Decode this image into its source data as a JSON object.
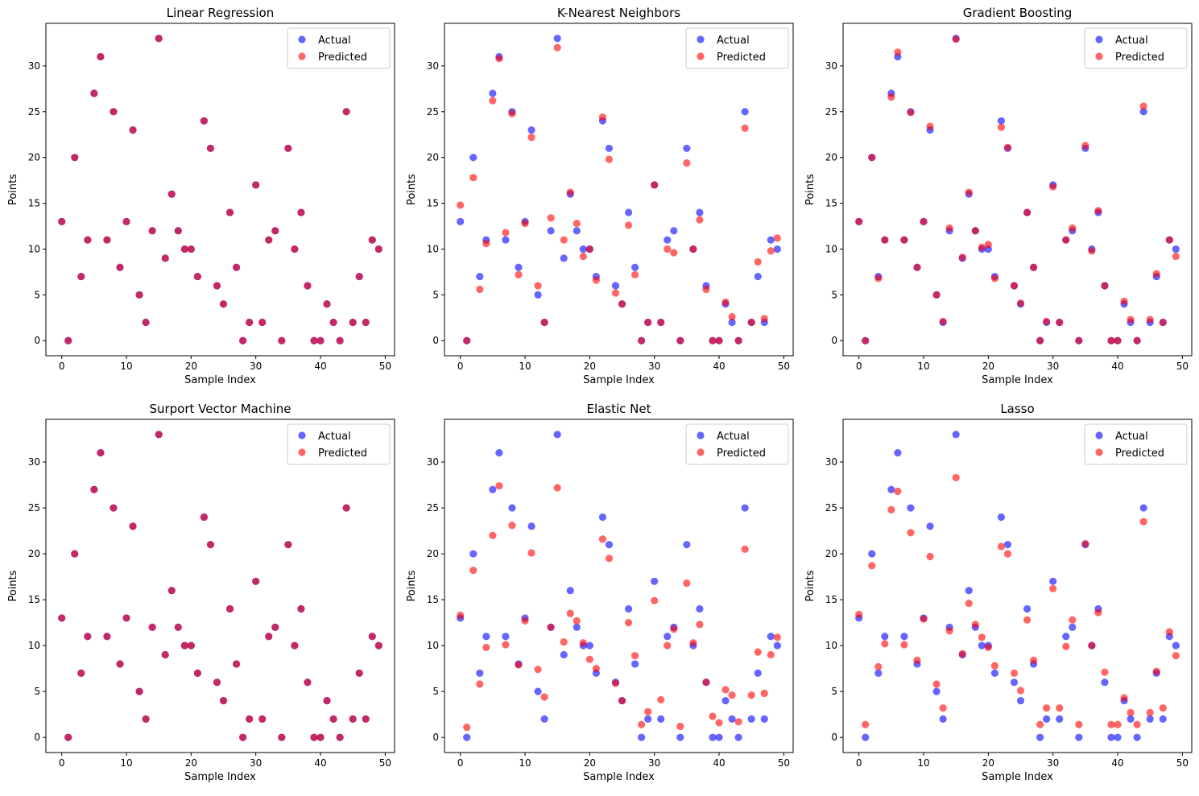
{
  "colors": {
    "actual": "#0000ff",
    "predicted": "#ff0000",
    "axis": "#000000"
  },
  "legend_labels": {
    "actual": "Actual",
    "predicted": "Predicted"
  },
  "chart_data": [
    {
      "type": "scatter",
      "title": "Linear Regression",
      "xlabel": "Sample Index",
      "ylabel": "Points",
      "xlim": [
        -2.45,
        51.45
      ],
      "ylim": [
        -1.65,
        34.65
      ],
      "xticks": [
        0,
        10,
        20,
        30,
        40,
        50
      ],
      "yticks": [
        0,
        5,
        10,
        15,
        20,
        25,
        30
      ],
      "legend": "top-right",
      "series": [
        {
          "name": "Actual",
          "values": [
            13,
            0,
            20,
            7,
            11,
            27,
            31,
            11,
            25,
            8,
            13,
            23,
            5,
            2,
            12,
            33,
            9,
            16,
            12,
            10,
            10,
            7,
            24,
            21,
            6,
            4,
            14,
            8,
            0,
            2,
            17,
            2,
            11,
            12,
            0,
            21,
            10,
            14,
            6,
            0,
            0,
            4,
            2,
            0,
            25,
            2,
            7,
            2,
            11,
            10
          ]
        },
        {
          "name": "Predicted",
          "values": [
            13,
            0,
            20,
            7,
            11,
            27,
            31,
            11,
            25,
            8,
            13,
            23,
            5,
            2,
            12,
            33,
            9,
            16,
            12,
            10,
            10,
            7,
            24,
            21,
            6,
            4,
            14,
            8,
            0,
            2,
            17,
            2,
            11,
            12,
            0,
            21,
            10,
            14,
            6,
            0,
            0,
            4,
            2,
            0,
            25,
            2,
            7,
            2,
            11,
            10
          ]
        }
      ]
    },
    {
      "type": "scatter",
      "title": "K-Nearest Neighbors",
      "xlabel": "Sample Index",
      "ylabel": "Points",
      "xlim": [
        -2.45,
        51.45
      ],
      "ylim": [
        -1.65,
        34.65
      ],
      "xticks": [
        0,
        10,
        20,
        30,
        40,
        50
      ],
      "yticks": [
        0,
        5,
        10,
        15,
        20,
        25,
        30
      ],
      "legend": "top-right",
      "series": [
        {
          "name": "Actual",
          "values": [
            13,
            0,
            20,
            7,
            11,
            27,
            31,
            11,
            25,
            8,
            13,
            23,
            5,
            2,
            12,
            33,
            9,
            16,
            12,
            10,
            10,
            7,
            24,
            21,
            6,
            4,
            14,
            8,
            0,
            2,
            17,
            2,
            11,
            12,
            0,
            21,
            10,
            14,
            6,
            0,
            0,
            4,
            2,
            0,
            25,
            2,
            7,
            2,
            11,
            10
          ]
        },
        {
          "name": "Predicted",
          "values": [
            14.8,
            0,
            17.8,
            5.6,
            10.6,
            26.2,
            30.8,
            11.8,
            24.8,
            7.2,
            12.8,
            22.2,
            6,
            2,
            13.4,
            32,
            11,
            16.2,
            12.8,
            9.2,
            10,
            6.6,
            24.4,
            19.8,
            5.2,
            4,
            12.6,
            7.2,
            0,
            2,
            17,
            2,
            10,
            9.6,
            0,
            19.4,
            10,
            13.2,
            5.6,
            0,
            0,
            4.2,
            2.6,
            0,
            23.2,
            2,
            8.6,
            2.4,
            9.8,
            11.2
          ]
        }
      ]
    },
    {
      "type": "scatter",
      "title": "Gradient Boosting",
      "xlabel": "Sample Index",
      "ylabel": "Points",
      "xlim": [
        -2.45,
        51.45
      ],
      "ylim": [
        -1.65,
        34.65
      ],
      "xticks": [
        0,
        10,
        20,
        30,
        40,
        50
      ],
      "yticks": [
        0,
        5,
        10,
        15,
        20,
        25,
        30
      ],
      "legend": "top-right",
      "series": [
        {
          "name": "Actual",
          "values": [
            13,
            0,
            20,
            7,
            11,
            27,
            31,
            11,
            25,
            8,
            13,
            23,
            5,
            2,
            12,
            33,
            9,
            16,
            12,
            10,
            10,
            7,
            24,
            21,
            6,
            4,
            14,
            8,
            0,
            2,
            17,
            2,
            11,
            12,
            0,
            21,
            10,
            14,
            6,
            0,
            0,
            4,
            2,
            0,
            25,
            2,
            7,
            2,
            11,
            10
          ]
        },
        {
          "name": "Predicted",
          "values": [
            13,
            0,
            20,
            6.8,
            11,
            26.6,
            31.5,
            11,
            24.9,
            8,
            13,
            23.4,
            5,
            2.1,
            12.3,
            32.9,
            9.1,
            16.2,
            12,
            10.2,
            10.5,
            6.8,
            23.3,
            21.1,
            6,
            4.1,
            14,
            8,
            0,
            2.1,
            16.8,
            2,
            11,
            12.3,
            0,
            21.3,
            9.8,
            14.2,
            6,
            0,
            0,
            4.3,
            2.3,
            0,
            25.6,
            2.3,
            7.3,
            2,
            11,
            9.2
          ]
        }
      ]
    },
    {
      "type": "scatter",
      "title": "Surport Vector Machine",
      "xlabel": "Sample Index",
      "ylabel": "Points",
      "xlim": [
        -2.45,
        51.45
      ],
      "ylim": [
        -1.65,
        34.65
      ],
      "xticks": [
        0,
        10,
        20,
        30,
        40,
        50
      ],
      "yticks": [
        0,
        5,
        10,
        15,
        20,
        25,
        30
      ],
      "legend": "top-right",
      "series": [
        {
          "name": "Actual",
          "values": [
            13,
            0,
            20,
            7,
            11,
            27,
            31,
            11,
            25,
            8,
            13,
            23,
            5,
            2,
            12,
            33,
            9,
            16,
            12,
            10,
            10,
            7,
            24,
            21,
            6,
            4,
            14,
            8,
            0,
            2,
            17,
            2,
            11,
            12,
            0,
            21,
            10,
            14,
            6,
            0,
            0,
            4,
            2,
            0,
            25,
            2,
            7,
            2,
            11,
            10
          ]
        },
        {
          "name": "Predicted",
          "values": [
            13,
            0,
            20,
            7,
            11,
            27,
            31,
            11,
            25,
            8,
            13,
            23,
            5,
            2,
            12,
            33,
            9,
            16,
            12,
            10,
            10,
            7,
            24,
            21,
            6,
            4,
            14,
            8,
            0,
            2,
            17,
            2,
            11,
            12,
            0,
            21,
            10,
            14,
            6,
            0,
            0,
            4,
            2,
            0,
            25,
            2,
            7,
            2,
            11,
            10
          ]
        }
      ]
    },
    {
      "type": "scatter",
      "title": "Elastic Net",
      "xlabel": "Sample Index",
      "ylabel": "Points",
      "xlim": [
        -2.45,
        51.45
      ],
      "ylim": [
        -1.65,
        34.65
      ],
      "xticks": [
        0,
        10,
        20,
        30,
        40,
        50
      ],
      "yticks": [
        0,
        5,
        10,
        15,
        20,
        25,
        30
      ],
      "legend": "top-right",
      "series": [
        {
          "name": "Actual",
          "values": [
            13,
            0,
            20,
            7,
            11,
            27,
            31,
            11,
            25,
            8,
            13,
            23,
            5,
            2,
            12,
            33,
            9,
            16,
            12,
            10,
            10,
            7,
            24,
            21,
            6,
            4,
            14,
            8,
            0,
            2,
            17,
            2,
            11,
            12,
            0,
            21,
            10,
            14,
            6,
            0,
            0,
            4,
            2,
            0,
            25,
            2,
            7,
            2,
            11,
            10
          ]
        },
        {
          "name": "Predicted",
          "values": [
            13.3,
            1.1,
            18.2,
            5.8,
            9.8,
            22,
            27.4,
            10.1,
            23.1,
            7.9,
            12.7,
            20.1,
            7.4,
            4.4,
            12,
            27.2,
            10.4,
            13.5,
            12.7,
            10.3,
            8.5,
            7.5,
            21.6,
            19.5,
            5.9,
            4,
            12.5,
            8.9,
            1.4,
            2.8,
            14.9,
            4.1,
            10,
            11.8,
            1.2,
            16.8,
            10.3,
            12.3,
            6,
            2.3,
            1.6,
            5.2,
            4.6,
            1.7,
            20.5,
            4.6,
            9.3,
            4.8,
            9,
            10.9
          ]
        }
      ]
    },
    {
      "type": "scatter",
      "title": "Lasso",
      "xlabel": "Sample Index",
      "ylabel": "Points",
      "xlim": [
        -2.45,
        51.45
      ],
      "ylim": [
        -1.65,
        34.65
      ],
      "xticks": [
        0,
        10,
        20,
        30,
        40,
        50
      ],
      "yticks": [
        0,
        5,
        10,
        15,
        20,
        25,
        30
      ],
      "legend": "top-right",
      "series": [
        {
          "name": "Actual",
          "values": [
            13,
            0,
            20,
            7,
            11,
            27,
            31,
            11,
            25,
            8,
            13,
            23,
            5,
            2,
            12,
            33,
            9,
            16,
            12,
            10,
            10,
            7,
            24,
            21,
            6,
            4,
            14,
            8,
            0,
            2,
            17,
            2,
            11,
            12,
            0,
            21,
            10,
            14,
            6,
            0,
            0,
            4,
            2,
            0,
            25,
            2,
            7,
            2,
            11,
            10
          ]
        },
        {
          "name": "Predicted",
          "values": [
            13.4,
            1.4,
            18.7,
            7.7,
            10.2,
            24.8,
            26.8,
            10.1,
            22.3,
            8.4,
            12.9,
            19.7,
            5.8,
            3.2,
            11.6,
            28.3,
            9.1,
            14.6,
            12.3,
            10.9,
            9.8,
            7.8,
            20.8,
            20,
            7,
            5.1,
            12.8,
            8.4,
            1.4,
            3.2,
            16.2,
            3.2,
            9.9,
            12.8,
            1.4,
            21.1,
            10,
            13.6,
            7.1,
            1.4,
            1.4,
            4.3,
            2.7,
            1.4,
            23.5,
            2.7,
            7.2,
            3.2,
            11.5,
            8.9
          ]
        }
      ]
    }
  ]
}
